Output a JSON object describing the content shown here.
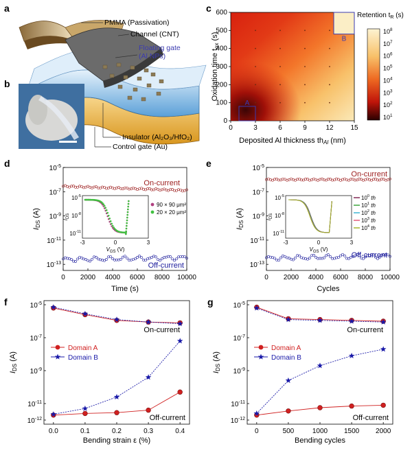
{
  "figure": {
    "panel_labels": [
      "a",
      "b",
      "c",
      "d",
      "e",
      "f",
      "g"
    ],
    "device": {
      "labels": {
        "pmma": "PMMA (Passivation)",
        "channel": "Channel (CNT)",
        "fg1": "Floating gate",
        "fg2": "(Al NPs)",
        "insulator": "Insulator (Al₂O₃/HfO₂)",
        "control": "Control gate (Au)"
      }
    }
  },
  "colors": {
    "domain_a": "#d02020",
    "domain_b": "#1a1aa8",
    "on_label": "#9b1a1a",
    "off_label": "#1a1a9b",
    "floating_gate_label": "#3a3ab0",
    "inset_red": "#b04080",
    "inset_green": "#40c040"
  },
  "chart_data": [
    {
      "id": "c",
      "type": "heatmap",
      "xlabel": "Deposited Al thickness th",
      "xlabel_sub": "Al",
      "xlabel_unit": " (nm)",
      "ylabel": "Oxidation time t",
      "ylabel_sub": "ox",
      "ylabel_unit": " (s)",
      "xlim": [
        0,
        15
      ],
      "ylim": [
        0,
        600
      ],
      "xticks": [
        "0",
        "3",
        "6",
        "9",
        "12",
        "15"
      ],
      "yticks": [
        "0",
        "100",
        "200",
        "300",
        "400",
        "500",
        "600"
      ],
      "colorbar_title": "Retention t",
      "colorbar_sub": "R",
      "colorbar_unit": " (s)",
      "colorbar_ticks": [
        "10",
        "10",
        "10",
        "10",
        "10",
        "10",
        "10",
        "10"
      ],
      "colorbar_exponents": [
        "8",
        "7",
        "6",
        "5",
        "4",
        "3",
        "2",
        "1"
      ],
      "regions": [
        {
          "label": "A",
          "x": [
            1,
            3
          ],
          "y": [
            0,
            80
          ]
        },
        {
          "label": "B",
          "x": [
            12.5,
            15
          ],
          "y": [
            480,
            600
          ]
        }
      ]
    },
    {
      "id": "d",
      "type": "scatter",
      "xlabel": "Time (s)",
      "ylabel": "I",
      "ylabel_sub": "DS",
      "ylabel_unit": " (A)",
      "xlim": [
        0,
        10000
      ],
      "xticks": [
        "0",
        "2000",
        "4000",
        "6000",
        "8000",
        "10000"
      ],
      "yticks_base": [
        "10",
        "10",
        "10",
        "10",
        "10"
      ],
      "yticks_exp": [
        "-5",
        "-7",
        "-9",
        "-11",
        "-13"
      ],
      "ylim_log": [
        -13.5,
        -5
      ],
      "series": [
        {
          "name": "On-current",
          "start_log": -6.55,
          "end_log": -6.9
        },
        {
          "name": "Off-current",
          "start_log": -12.6,
          "end_log": -12.45
        }
      ],
      "inset": {
        "xlabel": "V",
        "xlabel_sub": "GS",
        "xlabel_unit": " (V)",
        "ylabel": "I",
        "ylabel_sub": "DS",
        "xticks": [
          "-3",
          "0",
          "3"
        ],
        "yticks_exp": [
          "-5",
          "-8",
          "-11"
        ],
        "legend": [
          "90 × 90 μm²",
          "20 × 20 μm²"
        ]
      }
    },
    {
      "id": "e",
      "type": "scatter",
      "xlabel": "Cycles",
      "ylabel": "I",
      "ylabel_sub": "DS",
      "ylabel_unit": " (A)",
      "xlim": [
        0,
        10000
      ],
      "xticks": [
        "0",
        "2000",
        "4000",
        "6000",
        "8000",
        "10000"
      ],
      "yticks_base": [
        "10",
        "10",
        "10",
        "10",
        "10"
      ],
      "yticks_exp": [
        "-5",
        "-7",
        "-9",
        "-11",
        "-13"
      ],
      "ylim_log": [
        -13.5,
        -5
      ],
      "series": [
        {
          "name": "On-current",
          "start_log": -6.0,
          "end_log": -6.0
        },
        {
          "name": "Off-current",
          "start_log": -12.5,
          "end_log": -12.3
        }
      ],
      "inset": {
        "xlabel": "V",
        "xlabel_sub": "GS",
        "xlabel_unit": " (V)",
        "ylabel": "I",
        "ylabel_sub": "DS",
        "xticks": [
          "-3",
          "0",
          "3"
        ],
        "yticks_exp": [
          "-5",
          "-8",
          "-11"
        ],
        "legend_base": [
          "10",
          "10",
          "10",
          "10",
          "10"
        ],
        "legend_exp": [
          "0",
          "1",
          "2",
          "3",
          "4"
        ],
        "legend_suffix": " th",
        "legend_colors": [
          "#7a1a4a",
          "#30a030",
          "#30b0d0",
          "#e05070",
          "#a0b020"
        ]
      }
    },
    {
      "id": "f",
      "type": "line",
      "xlabel": "Bending strain ε (%)",
      "ylabel": "I",
      "ylabel_sub": "DS",
      "ylabel_unit": " (A)",
      "x": [
        0.0,
        0.1,
        0.2,
        0.3,
        0.4
      ],
      "xlim": [
        -0.03,
        0.43
      ],
      "xticks": [
        "0.0",
        "0.1",
        "0.2",
        "0.3",
        "0.4"
      ],
      "ylim_log": [
        -12,
        -5
      ],
      "yticks_exp": [
        "-5",
        "-7",
        "-9",
        "-11",
        "-12"
      ],
      "annotations": [
        "On-current",
        "Off-current"
      ],
      "series": [
        {
          "name": "Domain A",
          "marker": "circle",
          "on_log": [
            -5.2,
            -5.6,
            -5.95,
            -6.05,
            -6.1
          ],
          "off_log": [
            -11.7,
            -11.6,
            -11.55,
            -11.4,
            -10.3
          ]
        },
        {
          "name": "Domain B",
          "marker": "star",
          "on_log": [
            -5.15,
            -5.55,
            -5.9,
            -6.05,
            -6.15
          ],
          "off_log": [
            -11.65,
            -11.3,
            -10.6,
            -9.4,
            -7.2
          ]
        }
      ]
    },
    {
      "id": "g",
      "type": "line",
      "xlabel": "Bending cycles",
      "ylabel": "I",
      "ylabel_sub": "DS",
      "ylabel_unit": " (A)",
      "x": [
        0,
        500,
        1000,
        1500,
        2000
      ],
      "xlim": [
        -150,
        2150
      ],
      "xticks": [
        "0",
        "500",
        "1000",
        "1500",
        "2000"
      ],
      "ylim_log": [
        -12,
        -5
      ],
      "yticks_exp": [
        "-5",
        "-7",
        "-9",
        "-11",
        "-12"
      ],
      "annotations": [
        "On-current",
        "Off-current"
      ],
      "series": [
        {
          "name": "Domain A",
          "marker": "circle",
          "on_log": [
            -5.15,
            -5.85,
            -5.9,
            -5.95,
            -6.0
          ],
          "off_log": [
            -11.7,
            -11.45,
            -11.25,
            -11.15,
            -11.1
          ]
        },
        {
          "name": "Domain B",
          "marker": "star",
          "on_log": [
            -5.2,
            -5.9,
            -5.95,
            -6.0,
            -6.05
          ],
          "off_log": [
            -11.6,
            -9.6,
            -8.7,
            -8.1,
            -7.7
          ]
        }
      ]
    }
  ]
}
